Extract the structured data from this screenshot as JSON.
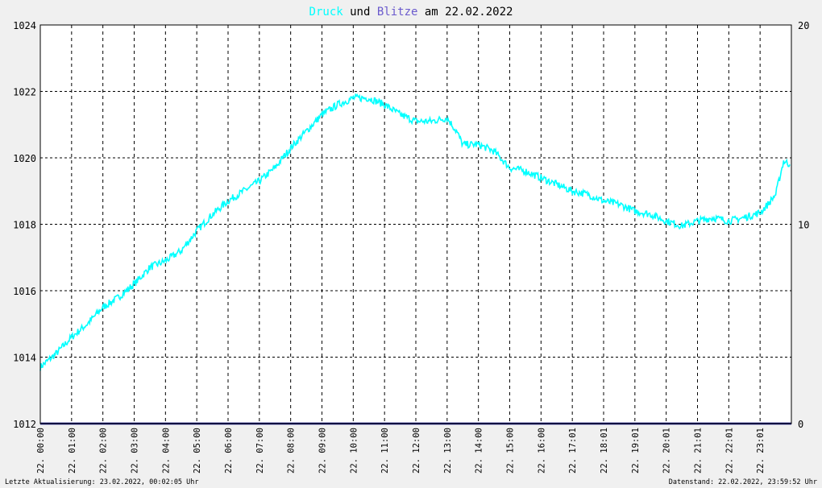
{
  "title": {
    "part1": "Druck",
    "part2": " und ",
    "part3": "Blitze",
    "part4": " am 22.02.2022"
  },
  "footer": {
    "left": "Letzte Aktualisierung: 23.02.2022, 00:02:05 Uhr",
    "right": "Datenstand: 22.02.2022, 23:59:52 Uhr"
  },
  "colors": {
    "background": "#f0f0f0",
    "plot_background": "#ffffff",
    "druck": "#00ffff",
    "blitze": "#6a5acd",
    "blitze_line": "#000080",
    "grid": "#000000",
    "text": "#000000"
  },
  "chart_data": {
    "type": "line",
    "grid": true,
    "x_tick_labels": [
      "22. 00:00",
      "22. 01:00",
      "22. 02:00",
      "22. 03:00",
      "22. 04:00",
      "22. 05:00",
      "22. 06:00",
      "22. 07:00",
      "22. 08:00",
      "22. 09:00",
      "22. 10:00",
      "22. 11:00",
      "22. 12:00",
      "22. 13:00",
      "22. 14:00",
      "22. 15:00",
      "22. 16:00",
      "22. 17:01",
      "22. 18:01",
      "22. 19:01",
      "22. 20:01",
      "22. 21:01",
      "22. 22:01",
      "22. 23:01"
    ],
    "y_left": {
      "min": 1012,
      "max": 1024,
      "ticks": [
        1012,
        1014,
        1016,
        1018,
        1020,
        1022,
        1024
      ]
    },
    "y_right": {
      "min": 0,
      "max": 20,
      "ticks": [
        0,
        10,
        20
      ]
    },
    "series": [
      {
        "name": "Druck",
        "axis": "left",
        "x_hours": [
          0,
          0.5,
          1,
          1.5,
          2,
          2.5,
          3,
          3.5,
          4,
          4.5,
          5,
          5.5,
          6,
          6.5,
          7,
          7.5,
          8,
          8.5,
          9,
          9.5,
          10,
          10.5,
          11,
          11.5,
          12,
          12.5,
          13,
          13.3,
          13.5,
          14,
          14.5,
          15,
          15.5,
          16,
          16.5,
          17,
          17.5,
          18,
          18.5,
          19,
          19.5,
          20,
          20.5,
          21,
          21.5,
          22,
          22.5,
          23,
          23.25,
          23.5,
          23.75,
          23.95
        ],
        "values": [
          1013.7,
          1014.1,
          1014.6,
          1015.0,
          1015.5,
          1015.8,
          1016.2,
          1016.7,
          1016.9,
          1017.2,
          1017.8,
          1018.3,
          1018.7,
          1019.0,
          1019.3,
          1019.7,
          1020.3,
          1020.8,
          1021.3,
          1021.6,
          1021.8,
          1021.8,
          1021.6,
          1021.3,
          1021.1,
          1021.1,
          1021.2,
          1020.8,
          1020.4,
          1020.4,
          1020.2,
          1019.7,
          1019.6,
          1019.4,
          1019.2,
          1019.0,
          1018.9,
          1018.7,
          1018.6,
          1018.4,
          1018.3,
          1018.1,
          1017.95,
          1018.1,
          1018.2,
          1018.1,
          1018.2,
          1018.35,
          1018.6,
          1018.9,
          1019.9,
          1019.8
        ]
      },
      {
        "name": "Blitze",
        "axis": "right",
        "x_hours": [
          0,
          24
        ],
        "values": [
          0,
          0
        ]
      }
    ]
  }
}
